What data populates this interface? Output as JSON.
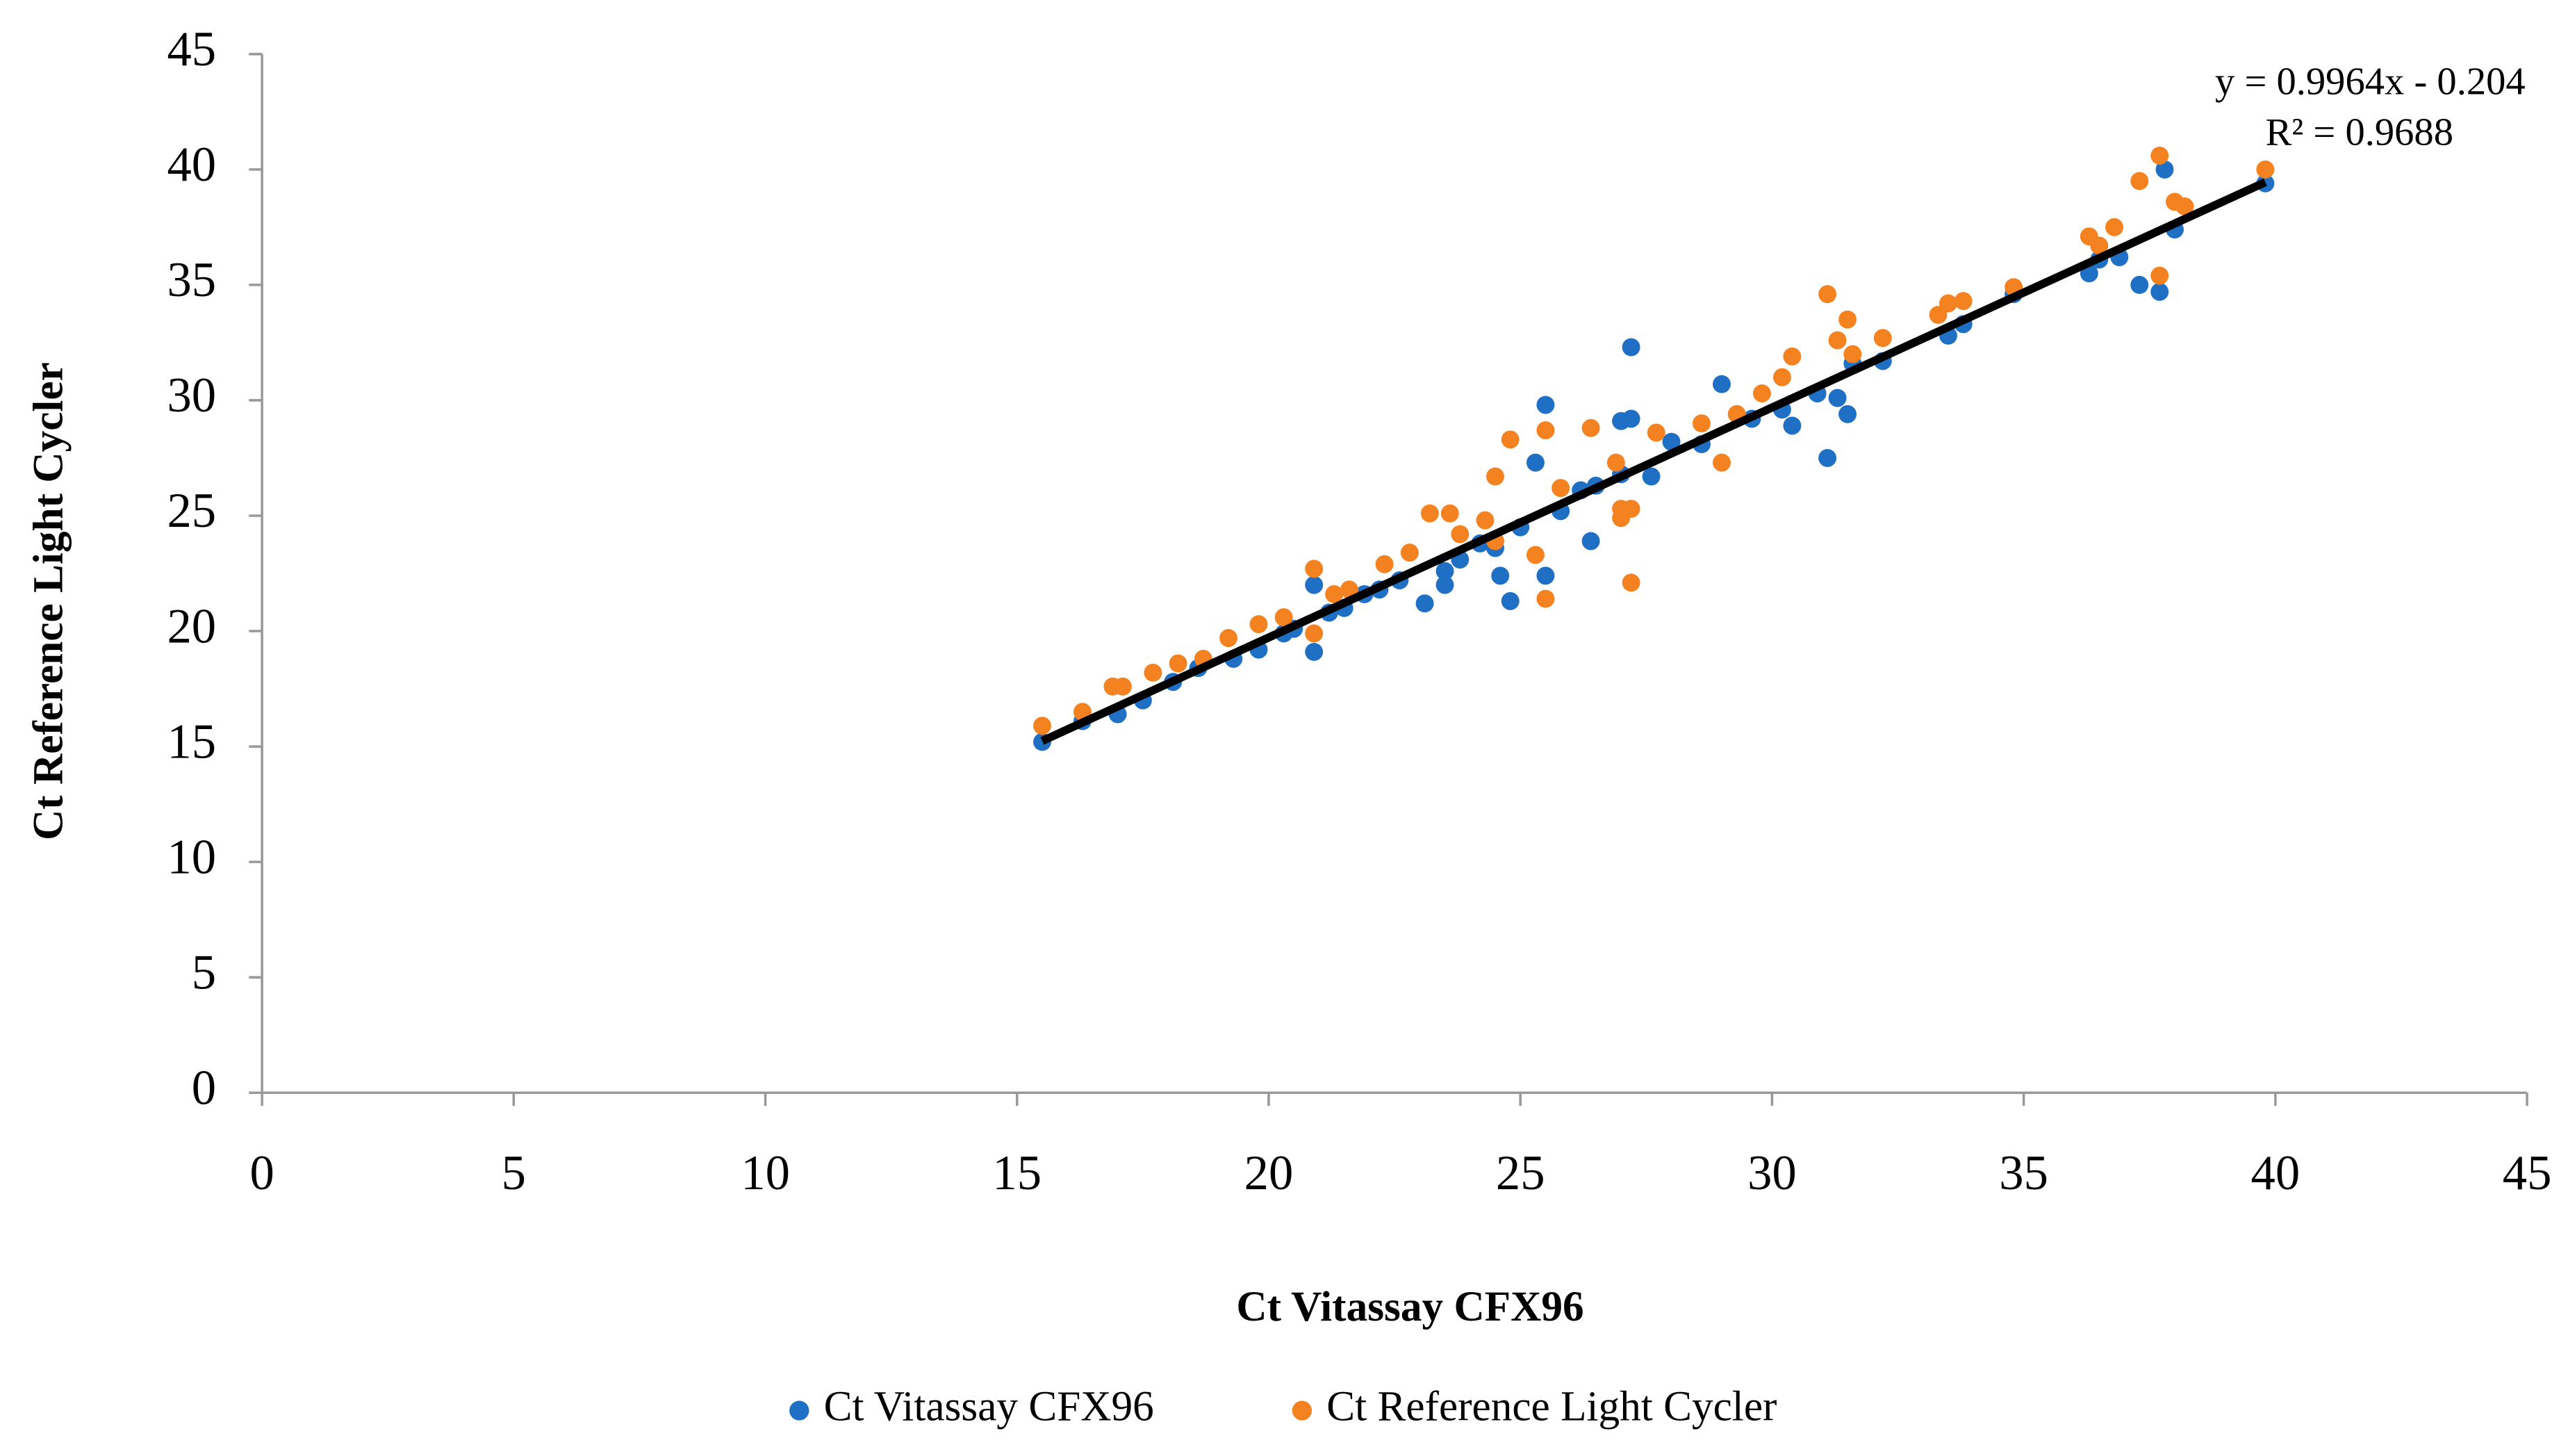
{
  "chart_data": {
    "type": "scatter",
    "x_label": "Ct Vitassay CFX96",
    "y_label": "Ct Reference Light Cycler",
    "xlim": [
      0,
      45
    ],
    "ylim": [
      0,
      45
    ],
    "xticks": [
      0,
      5,
      10,
      15,
      20,
      25,
      30,
      35,
      40,
      45
    ],
    "yticks": [
      0,
      5,
      10,
      15,
      20,
      25,
      30,
      35,
      40,
      45
    ],
    "legend": "bottom",
    "series": [
      {
        "name": "Ct Vitassay CFX96",
        "color": "#1f6fc5",
        "x": [
          15.5,
          16.3,
          17.0,
          17.5,
          18.1,
          18.6,
          19.3,
          19.8,
          20.3,
          20.5,
          20.9,
          20.9,
          21.2,
          21.5,
          21.9,
          22.2,
          22.6,
          23.1,
          23.5,
          23.5,
          23.8,
          24.2,
          24.5,
          24.6,
          24.8,
          25.0,
          25.3,
          25.5,
          25.5,
          25.8,
          26.2,
          26.4,
          26.5,
          27.0,
          27.0,
          27.2,
          27.2,
          27.6,
          28.0,
          28.6,
          29.0,
          29.6,
          30.2,
          30.4,
          30.9,
          31.1,
          31.3,
          31.5,
          31.6,
          32.2,
          33.5,
          33.8,
          34.8,
          36.3,
          36.5,
          36.9,
          37.3,
          37.7,
          37.8,
          38.0,
          39.8
        ],
        "y": [
          15.2,
          16.1,
          16.4,
          17.0,
          17.8,
          18.4,
          18.8,
          19.2,
          19.9,
          20.1,
          19.1,
          22.0,
          20.8,
          21.0,
          21.6,
          21.8,
          22.2,
          21.2,
          22.0,
          22.6,
          23.1,
          23.8,
          23.6,
          22.4,
          21.3,
          24.5,
          27.3,
          22.4,
          29.8,
          25.2,
          26.1,
          23.9,
          26.3,
          29.1,
          26.8,
          32.3,
          29.2,
          26.7,
          28.2,
          28.1,
          30.7,
          29.2,
          29.6,
          28.9,
          30.3,
          27.5,
          30.1,
          29.4,
          31.6,
          31.7,
          32.8,
          33.3,
          34.6,
          35.5,
          36.1,
          36.2,
          35.0,
          34.7,
          40.0,
          37.4,
          39.4
        ]
      },
      {
        "name": "Ct Reference Light Cycler",
        "color": "#f58220",
        "x": [
          15.5,
          16.3,
          16.9,
          17.1,
          17.7,
          18.2,
          18.7,
          19.2,
          19.8,
          20.3,
          20.9,
          20.9,
          21.3,
          21.6,
          22.3,
          22.8,
          23.2,
          23.6,
          23.8,
          24.3,
          24.5,
          24.5,
          24.8,
          25.3,
          25.5,
          25.5,
          25.8,
          26.4,
          26.9,
          27.0,
          27.0,
          27.2,
          27.2,
          27.7,
          28.6,
          29.0,
          29.3,
          29.8,
          30.2,
          30.4,
          31.1,
          31.3,
          31.5,
          31.6,
          32.2,
          33.3,
          33.5,
          33.8,
          34.8,
          36.3,
          36.5,
          36.8,
          37.3,
          37.7,
          37.7,
          38.0,
          38.2,
          39.8
        ],
        "y": [
          15.9,
          16.5,
          17.6,
          17.6,
          18.2,
          18.6,
          18.8,
          19.7,
          20.3,
          20.6,
          22.7,
          19.9,
          21.6,
          21.8,
          22.9,
          23.4,
          25.1,
          25.1,
          24.2,
          24.8,
          26.7,
          23.9,
          28.3,
          23.3,
          28.7,
          21.4,
          26.2,
          28.8,
          27.3,
          24.9,
          25.3,
          22.1,
          25.3,
          28.6,
          29.0,
          27.3,
          29.4,
          30.3,
          31.0,
          31.9,
          34.6,
          32.6,
          33.5,
          32.0,
          32.7,
          33.7,
          34.2,
          34.3,
          34.9,
          37.1,
          36.7,
          37.5,
          39.5,
          40.6,
          35.4,
          38.6,
          38.4,
          40.0
        ]
      }
    ],
    "trendline": {
      "label": "y = 0.9964x - 0.204",
      "r2_label": "R² = 0.9688",
      "color": "#000000",
      "x": [
        15.5,
        39.8
      ],
      "y": [
        15.24,
        39.45
      ]
    }
  }
}
